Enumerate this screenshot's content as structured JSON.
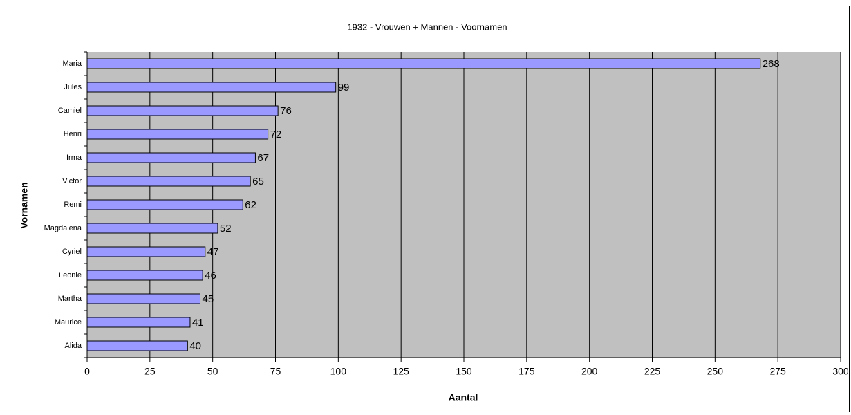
{
  "chart_data": {
    "type": "bar",
    "orientation": "horizontal",
    "title": "1932 - Vrouwen + Mannen - Voornamen",
    "x_label": "Aantal",
    "y_label": "Vornamen",
    "categories": [
      "Maria",
      "Jules",
      "Camiel",
      "Henri",
      "Irma",
      "Victor",
      "Remi",
      "Magdalena",
      "Cyriel",
      "Leonie",
      "Martha",
      "Maurice",
      "Alida"
    ],
    "values": [
      268,
      99,
      76,
      72,
      67,
      65,
      62,
      52,
      47,
      46,
      45,
      41,
      40
    ],
    "color": "#9999ff",
    "xlim": [
      0,
      300
    ],
    "xticks": [
      0,
      25,
      50,
      75,
      100,
      125,
      150,
      175,
      200,
      225,
      250,
      275,
      300
    ],
    "grid": true,
    "data_labels": true
  }
}
